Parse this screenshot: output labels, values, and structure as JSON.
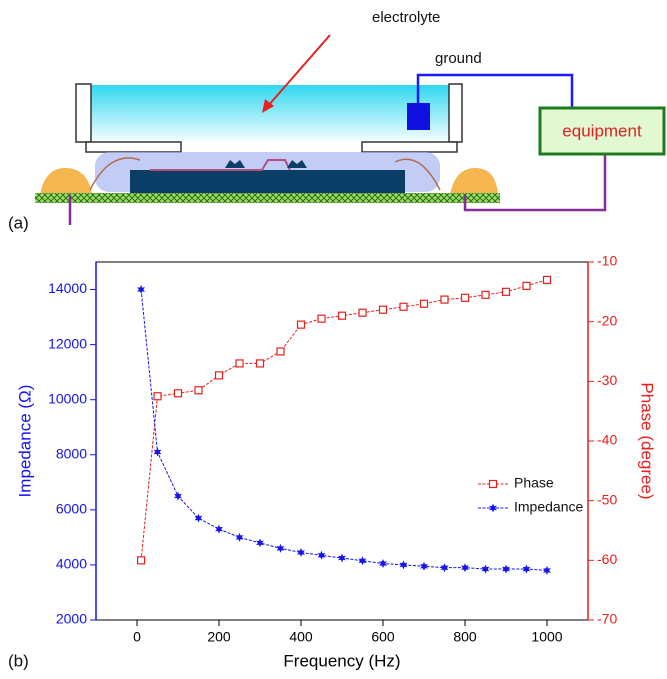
{
  "diagram": {
    "panel_a": "(a)",
    "panel_b": "(b)",
    "labels": {
      "electrolyte": "electrolyte",
      "ground": "ground",
      "equipment": "equipment"
    }
  },
  "chart_data": {
    "type": "line",
    "x_label": "Frequency (Hz)",
    "y_label": "Impedance (Ω)",
    "y2_label": "Phase (degree)",
    "x": [
      10,
      50,
      100,
      150,
      200,
      250,
      300,
      350,
      400,
      450,
      500,
      550,
      600,
      650,
      700,
      750,
      800,
      850,
      900,
      950,
      1000
    ],
    "series": [
      {
        "name": "Phase",
        "color": "#e8201c",
        "axis": "y2",
        "marker": "square",
        "values": [
          -60,
          -32.5,
          -32,
          -31.5,
          -29,
          -27,
          -27,
          -25,
          -20.5,
          -19.5,
          -19,
          -18.5,
          -18,
          -17.5,
          -17,
          -16.3,
          -16,
          -15.5,
          -15,
          -14,
          -13
        ]
      },
      {
        "name": "Impedance",
        "color": "#1414f0",
        "axis": "y",
        "marker": "star",
        "values": [
          14000,
          8100,
          6500,
          5700,
          5300,
          5000,
          4800,
          4600,
          4450,
          4350,
          4250,
          4150,
          4050,
          4000,
          3950,
          3900,
          3900,
          3850,
          3850,
          3850,
          3800
        ]
      }
    ],
    "xlim": [
      -100,
      1100
    ],
    "xticks": [
      0,
      200,
      400,
      600,
      800,
      1000
    ],
    "ylim": [
      2000,
      15000
    ],
    "yticks": [
      2000,
      4000,
      6000,
      8000,
      10000,
      12000,
      14000
    ],
    "y2lim": [
      -70,
      -10
    ],
    "y2ticks": [
      -70,
      -60,
      -50,
      -40,
      -30,
      -20,
      -10
    ],
    "legend": "center-right"
  }
}
